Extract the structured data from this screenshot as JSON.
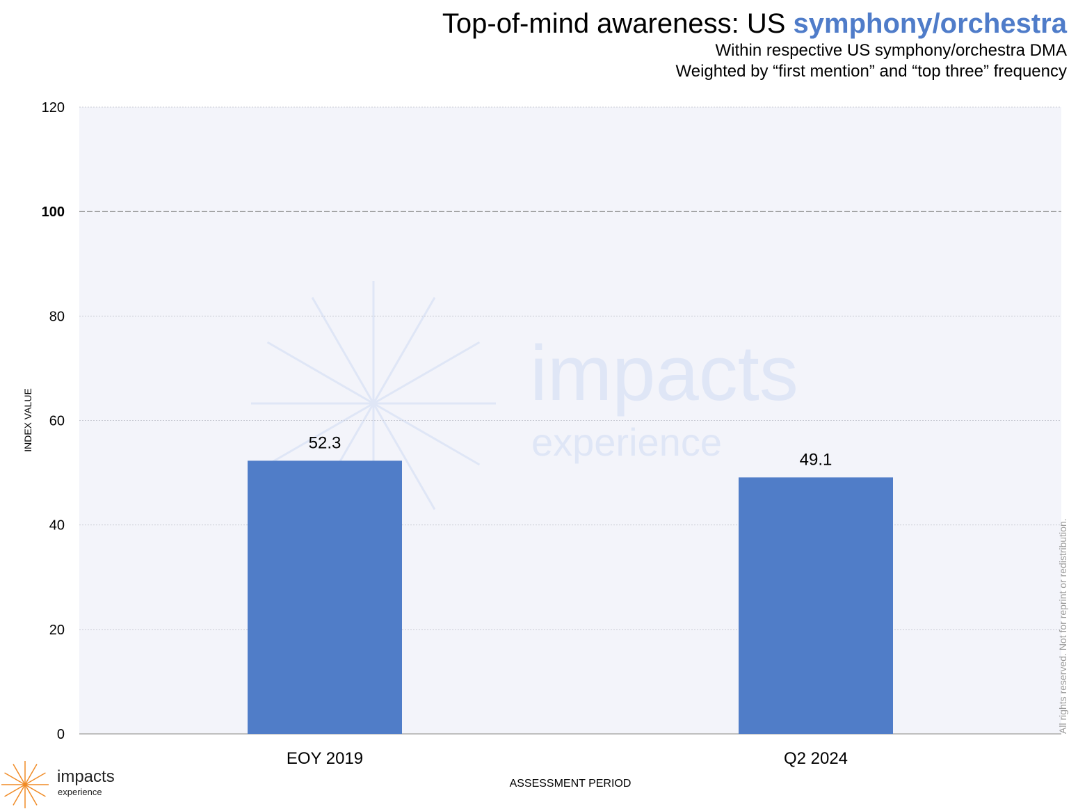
{
  "title": {
    "main": "Top-of-mind awareness: US ",
    "accent": "symphony/orchestra"
  },
  "subtitle": [
    "Within respective US symphony/orchestra DMA",
    "Weighted by “first mention” and “top three” frequency"
  ],
  "watermark": {
    "line1": "impacts",
    "line2": "experience"
  },
  "logo": {
    "line1": "impacts",
    "line2": "experience"
  },
  "rights": "All rights reserved. Not for reprint or redistribution.",
  "colors": {
    "bar": "#507dc8",
    "accent": "#4f7cc9",
    "plot_bg": "#f3f4fa",
    "logo": "#f08a24",
    "watermark": "#dfe6f6"
  },
  "chart_data": {
    "type": "bar",
    "categories": [
      "EOY 2019",
      "Q2 2024"
    ],
    "values": [
      52.3,
      49.1
    ],
    "value_labels": [
      "52.3",
      "49.1"
    ],
    "xlabel": "ASSESSMENT PERIOD",
    "ylabel": "INDEX VALUE",
    "ylim": [
      0,
      120
    ],
    "yticks": [
      0,
      20,
      40,
      60,
      80,
      100,
      120
    ],
    "reference_line": 100,
    "grid": true
  }
}
